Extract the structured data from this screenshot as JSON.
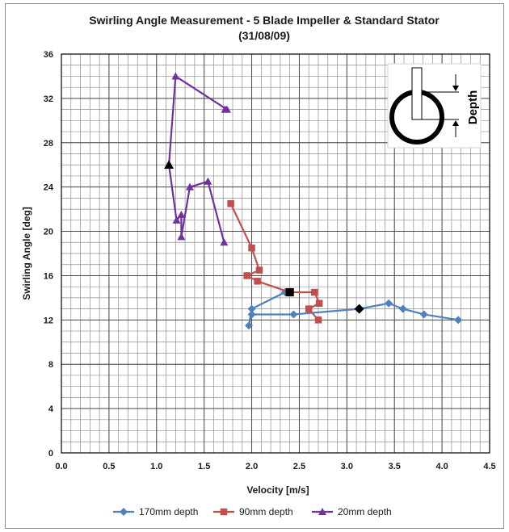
{
  "chart_data": {
    "type": "line",
    "title_line1": "Swirling Angle Measurement - 5 Blade Impeller & Standard Stator",
    "title_line2": "(31/08/09)",
    "xlabel": "Velocity [m/s]",
    "ylabel": "Swirling Angle [deg]",
    "xlim": [
      0,
      4.5
    ],
    "ylim": [
      0,
      36
    ],
    "x_ticks": [
      "0.0",
      "0.5",
      "1.0",
      "1.5",
      "2.0",
      "2.5",
      "3.0",
      "3.5",
      "4.0",
      "4.5"
    ],
    "y_ticks": [
      "0",
      "4",
      "8",
      "12",
      "16",
      "20",
      "24",
      "28",
      "32",
      "36"
    ],
    "grid": true,
    "legend_position": "bottom",
    "series": [
      {
        "name": "170mm depth",
        "color": "#4f81bd",
        "marker": "diamond",
        "x": [
          4.17,
          3.81,
          3.59,
          3.44,
          3.13,
          2.44,
          2.0,
          1.97,
          2.0,
          2.35
        ],
        "y": [
          12.0,
          12.5,
          13.0,
          13.5,
          13.0,
          12.5,
          12.5,
          11.5,
          13.0,
          14.5
        ],
        "highlight": {
          "x": 3.13,
          "y": 13.0,
          "color": "#000000"
        }
      },
      {
        "name": "90mm depth",
        "color": "#c0504d",
        "marker": "square",
        "x": [
          2.7,
          2.6,
          2.71,
          2.66,
          2.4,
          2.06,
          1.95,
          2.08,
          2.0,
          1.78
        ],
        "y": [
          12.0,
          13.0,
          13.5,
          14.5,
          14.5,
          15.5,
          16.0,
          16.5,
          18.5,
          22.5
        ],
        "highlight": {
          "x": 2.4,
          "y": 14.5,
          "color": "#000000"
        }
      },
      {
        "name": "20mm depth",
        "color": "#7030a0",
        "marker": "triangle",
        "x": [
          1.71,
          1.54,
          1.35,
          1.26,
          1.26,
          1.21,
          1.13,
          1.2,
          1.74,
          1.72
        ],
        "y": [
          19.0,
          24.5,
          24.0,
          19.5,
          21.5,
          21.0,
          26.0,
          34.0,
          31.0,
          31.0
        ],
        "highlight": {
          "x": 1.13,
          "y": 26.0,
          "color": "#000000"
        }
      }
    ],
    "inset": {
      "label": "Depth"
    }
  }
}
